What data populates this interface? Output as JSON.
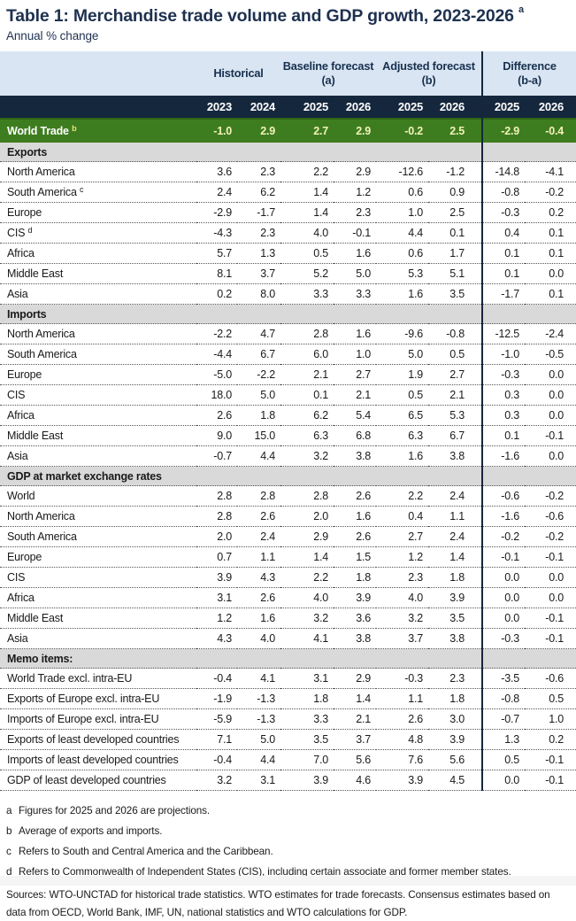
{
  "colors": {
    "group_band_bg": "#d9e5f2",
    "group_band_text": "#17304f",
    "year_band_bg": "#15273d",
    "world_row_bg": "#3d7d1f",
    "world_row_number_text": "#f4f1bb",
    "world_row_label_text": "#ffffff",
    "section_header_bg": "#d9d9d9",
    "divider": "#15273d",
    "title_text": "#1e3150"
  },
  "chart_data": {
    "type": "table",
    "title": "Table 1: Merchandise trade volume and GDP growth, 2023-2026",
    "title_superscript": "a",
    "subtitle": "Annual % change",
    "group_headers": [
      {
        "label": "Historical",
        "sub": ""
      },
      {
        "label": "Baseline forecast",
        "sub": "(a)"
      },
      {
        "label": "Adjusted forecast",
        "sub": "(b)"
      },
      {
        "label": "Difference",
        "sub": "(b-a)"
      }
    ],
    "years": [
      "2023",
      "2024",
      "2025",
      "2026",
      "2025",
      "2026",
      "2025",
      "2026"
    ],
    "world_row": {
      "label": "World Trade",
      "superscript": "b",
      "values": [
        "-1.0",
        "2.9",
        "2.7",
        "2.9",
        "-0.2",
        "2.5",
        "-2.9",
        "-0.4"
      ]
    },
    "sections": [
      {
        "header": "Exports",
        "rows": [
          {
            "label": "North America",
            "values": [
              "3.6",
              "2.3",
              "2.2",
              "2.9",
              "-12.6",
              "-1.2",
              "-14.8",
              "-4.1"
            ]
          },
          {
            "label": "South America",
            "superscript": "c",
            "values": [
              "2.4",
              "6.2",
              "1.4",
              "1.2",
              "0.6",
              "0.9",
              "-0.8",
              "-0.2"
            ]
          },
          {
            "label": "Europe",
            "values": [
              "-2.9",
              "-1.7",
              "1.4",
              "2.3",
              "1.0",
              "2.5",
              "-0.3",
              "0.2"
            ]
          },
          {
            "label": "CIS",
            "superscript": "d",
            "values": [
              "-4.3",
              "2.3",
              "4.0",
              "-0.1",
              "4.4",
              "0.1",
              "0.4",
              "0.1"
            ]
          },
          {
            "label": "Africa",
            "values": [
              "5.7",
              "1.3",
              "0.5",
              "1.6",
              "0.6",
              "1.7",
              "0.1",
              "0.1"
            ]
          },
          {
            "label": "Middle East",
            "values": [
              "8.1",
              "3.7",
              "5.2",
              "5.0",
              "5.3",
              "5.1",
              "0.1",
              "0.0"
            ]
          },
          {
            "label": "Asia",
            "values": [
              "0.2",
              "8.0",
              "3.3",
              "3.3",
              "1.6",
              "3.5",
              "-1.7",
              "0.1"
            ]
          }
        ]
      },
      {
        "header": "Imports",
        "rows": [
          {
            "label": "North America",
            "values": [
              "-2.2",
              "4.7",
              "2.8",
              "1.6",
              "-9.6",
              "-0.8",
              "-12.5",
              "-2.4"
            ]
          },
          {
            "label": "South America",
            "values": [
              "-4.4",
              "6.7",
              "6.0",
              "1.0",
              "5.0",
              "0.5",
              "-1.0",
              "-0.5"
            ]
          },
          {
            "label": "Europe",
            "values": [
              "-5.0",
              "-2.2",
              "2.1",
              "2.7",
              "1.9",
              "2.7",
              "-0.3",
              "0.0"
            ]
          },
          {
            "label": "CIS",
            "values": [
              "18.0",
              "5.0",
              "0.1",
              "2.1",
              "0.5",
              "2.1",
              "0.3",
              "0.0"
            ]
          },
          {
            "label": "Africa",
            "values": [
              "2.6",
              "1.8",
              "6.2",
              "5.4",
              "6.5",
              "5.3",
              "0.3",
              "0.0"
            ]
          },
          {
            "label": "Middle East",
            "values": [
              "9.0",
              "15.0",
              "6.3",
              "6.8",
              "6.3",
              "6.7",
              "0.1",
              "-0.1"
            ]
          },
          {
            "label": "Asia",
            "values": [
              "-0.7",
              "4.4",
              "3.2",
              "3.8",
              "1.6",
              "3.8",
              "-1.6",
              "0.0"
            ]
          }
        ]
      },
      {
        "header": "GDP at market exchange rates",
        "rows": [
          {
            "label": "World",
            "values": [
              "2.8",
              "2.8",
              "2.8",
              "2.6",
              "2.2",
              "2.4",
              "-0.6",
              "-0.2"
            ]
          },
          {
            "label": "North America",
            "values": [
              "2.8",
              "2.6",
              "2.0",
              "1.6",
              "0.4",
              "1.1",
              "-1.6",
              "-0.6"
            ]
          },
          {
            "label": "South America",
            "values": [
              "2.0",
              "2.4",
              "2.9",
              "2.6",
              "2.7",
              "2.4",
              "-0.2",
              "-0.2"
            ]
          },
          {
            "label": "Europe",
            "values": [
              "0.7",
              "1.1",
              "1.4",
              "1.5",
              "1.2",
              "1.4",
              "-0.1",
              "-0.1"
            ]
          },
          {
            "label": "CIS",
            "values": [
              "3.9",
              "4.3",
              "2.2",
              "1.8",
              "2.3",
              "1.8",
              "0.0",
              "0.0"
            ]
          },
          {
            "label": "Africa",
            "values": [
              "3.1",
              "2.6",
              "4.0",
              "3.9",
              "4.0",
              "3.9",
              "0.0",
              "0.0"
            ]
          },
          {
            "label": "Middle East",
            "values": [
              "1.2",
              "1.6",
              "3.2",
              "3.6",
              "3.2",
              "3.5",
              "0.0",
              "-0.1"
            ]
          },
          {
            "label": "Asia",
            "values": [
              "4.3",
              "4.0",
              "4.1",
              "3.8",
              "3.7",
              "3.8",
              "-0.3",
              "-0.1"
            ]
          }
        ]
      },
      {
        "header": "Memo items:",
        "rows": [
          {
            "label": "World Trade excl. intra-EU",
            "values": [
              "-0.4",
              "4.1",
              "3.1",
              "2.9",
              "-0.3",
              "2.3",
              "-3.5",
              "-0.6"
            ]
          },
          {
            "label": "Exports of Europe excl. intra-EU",
            "values": [
              "-1.9",
              "-1.3",
              "1.8",
              "1.4",
              "1.1",
              "1.8",
              "-0.8",
              "0.5"
            ]
          },
          {
            "label": "Imports of Europe excl. intra-EU",
            "values": [
              "-5.9",
              "-1.3",
              "3.3",
              "2.1",
              "2.6",
              "3.0",
              "-0.7",
              "1.0"
            ]
          },
          {
            "label": "Exports of least developed countries",
            "values": [
              "7.1",
              "5.0",
              "3.5",
              "3.7",
              "4.8",
              "3.9",
              "1.3",
              "0.2"
            ]
          },
          {
            "label": "Imports of least developed countries",
            "values": [
              "-0.4",
              "4.4",
              "7.0",
              "5.6",
              "7.6",
              "5.6",
              "0.5",
              "-0.1"
            ]
          },
          {
            "label": "GDP of least developed countries",
            "values": [
              "3.2",
              "3.1",
              "3.9",
              "4.6",
              "3.9",
              "4.5",
              "0.0",
              "-0.1"
            ]
          }
        ]
      }
    ],
    "footnotes": [
      {
        "marker": "a",
        "text": "Figures for 2025 and 2026 are projections."
      },
      {
        "marker": "b",
        "text": "Average of exports and imports."
      },
      {
        "marker": "c",
        "text": "Refers to South and Central America and the Caribbean."
      },
      {
        "marker": "d",
        "text": "Refers to Commonwealth of Independent States (CIS), including certain associate and former member states."
      }
    ],
    "sources": "Sources: WTO-UNCTAD for historical trade statistics. WTO estimates for trade forecasts.  Consensus estimates based on data from OECD, World Bank, IMF, UN, national statistics and WTO calculations for GDP."
  }
}
